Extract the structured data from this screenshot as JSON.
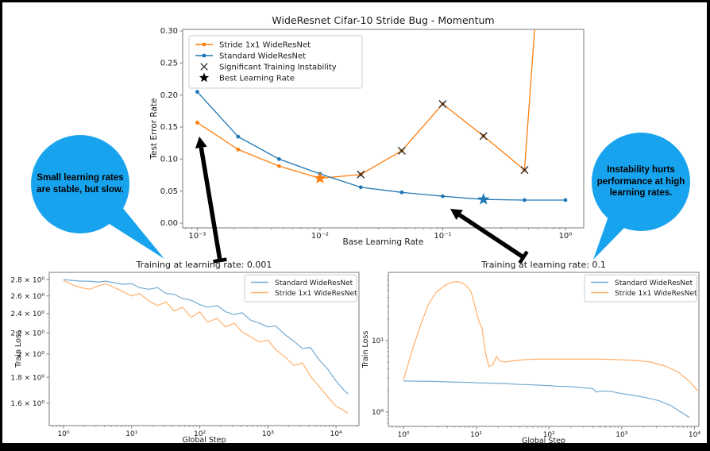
{
  "colors": {
    "orange": "#ff7f0e",
    "blue": "#1f77b4",
    "instability_marker": "#2b2b2b",
    "legend_star": "#000000",
    "bubble_blue": "#17a3ee",
    "arrow_black": "#000000",
    "spine_gray": "#7a7a7a",
    "text_dark": "#1a1a1a"
  },
  "annotations": {
    "left_bubble": {
      "text": "Small learning rates\nare stable, but slow."
    },
    "right_bubble": {
      "text": "Instability hurts\nperformance at high\nlearning rates."
    }
  },
  "chart_data": [
    {
      "id": "top",
      "type": "line",
      "title": "WideResnet Cifar-10 Stride Bug - Momentum",
      "xlabel": "Base Learning Rate",
      "ylabel": "Test Error Rate",
      "xscale": "log",
      "yscale": "linear",
      "xlim": [
        0.00076,
        1.41
      ],
      "ylim": [
        -0.0074,
        0.3025
      ],
      "x_ticks": {
        "values": [
          0.001,
          0.01,
          0.1,
          1
        ],
        "labels": [
          "10⁻³",
          "10⁻²",
          "10⁻¹",
          "10⁰"
        ]
      },
      "y_ticks": {
        "values": [
          0.0,
          0.05,
          0.1,
          0.15,
          0.2,
          0.25,
          0.3
        ],
        "labels": [
          "0.00",
          "0.05",
          "0.10",
          "0.15",
          "0.20",
          "0.25",
          "0.30"
        ]
      },
      "series": [
        {
          "name": "Stride 1x1 WideResNet",
          "color": "orange",
          "marker": "dot",
          "opacity": 1,
          "x": [
            0.001,
            0.00215,
            0.00464,
            0.01,
            0.0215,
            0.0464,
            0.1,
            0.215,
            0.464,
            1.0
          ],
          "y": [
            0.157,
            0.115,
            0.089,
            0.07,
            0.076,
            0.113,
            0.186,
            0.136,
            0.083,
            0.97
          ]
        },
        {
          "name": "Standard WideResNet",
          "color": "blue",
          "marker": "dot",
          "opacity": 1,
          "x": [
            0.001,
            0.00215,
            0.00464,
            0.01,
            0.0215,
            0.0464,
            0.1,
            0.215,
            0.464,
            1.0
          ],
          "y": [
            0.205,
            0.135,
            0.1,
            0.077,
            0.056,
            0.048,
            0.042,
            0.037,
            0.036,
            0.036
          ]
        }
      ],
      "instability_x_markers": {
        "meaning": "Significant Training Instability",
        "x": [
          0.0215,
          0.0464,
          0.1,
          0.215,
          0.464
        ],
        "y": [
          0.076,
          0.113,
          0.186,
          0.136,
          0.083
        ]
      },
      "best_lr_stars": [
        {
          "series": "Stride 1x1 WideResNet",
          "x": 0.01,
          "y": 0.07,
          "color": "orange"
        },
        {
          "series": "Standard WideResNet",
          "x": 0.215,
          "y": 0.037,
          "color": "blue"
        }
      ],
      "legend": {
        "position": "upper left",
        "entries": [
          {
            "label": "Stride 1x1 WideResNet",
            "marker": "line-dot",
            "color": "orange"
          },
          {
            "label": "Standard WideResNet",
            "marker": "line-dot",
            "color": "blue"
          },
          {
            "label": "Significant Training Instability",
            "marker": "x",
            "color": "instability_marker"
          },
          {
            "label": "Best Learning Rate",
            "marker": "star",
            "color": "legend_star"
          }
        ]
      }
    },
    {
      "id": "bottom_left",
      "type": "line",
      "title": "Training at learning rate: 0.001",
      "xlabel": "Global Step",
      "ylabel": "Train Loss",
      "xscale": "log",
      "yscale": "log",
      "xlim": [
        0.617,
        21700
      ],
      "ylim": [
        1.447,
        2.893
      ],
      "x_ticks": {
        "values": [
          1,
          10,
          100,
          1000,
          10000
        ],
        "labels": [
          "10⁰",
          "10¹",
          "10²",
          "10³",
          "10⁴"
        ]
      },
      "y_ticks": {
        "values": [
          1.6,
          1.8,
          2.0,
          2.2,
          2.4,
          2.6,
          2.8
        ],
        "labels": [
          "1.6 × 10⁰",
          "1.8 × 10⁰",
          "2 × 10⁰",
          "2.2 × 10⁰",
          "2.4 × 10⁰",
          "2.6 × 10⁰",
          "2.8 × 10⁰"
        ]
      },
      "series": [
        {
          "name": "Standard WideResNet",
          "color": "blue",
          "marker": "none",
          "opacity": 0.62,
          "x": [
            1,
            1.3,
            1.8,
            2.4,
            3.2,
            4.2,
            5.6,
            7.5,
            10,
            13,
            18,
            24,
            32,
            42,
            56,
            75,
            100,
            130,
            180,
            240,
            320,
            420,
            560,
            750,
            1000,
            1300,
            1800,
            2400,
            3200,
            4200,
            5600,
            7500,
            10000,
            13000,
            15000
          ],
          "y": [
            2.8,
            2.79,
            2.78,
            2.78,
            2.77,
            2.78,
            2.76,
            2.74,
            2.75,
            2.7,
            2.68,
            2.7,
            2.63,
            2.62,
            2.57,
            2.55,
            2.5,
            2.47,
            2.49,
            2.42,
            2.39,
            2.41,
            2.33,
            2.3,
            2.26,
            2.27,
            2.18,
            2.12,
            2.05,
            2.06,
            1.95,
            1.87,
            1.77,
            1.7,
            1.67
          ]
        },
        {
          "name": "Stride 1x1 WideResNet",
          "color": "orange",
          "marker": "none",
          "opacity": 0.62,
          "x": [
            1,
            1.3,
            1.8,
            2.4,
            3.2,
            4.2,
            5.6,
            7.5,
            10,
            13,
            18,
            24,
            32,
            42,
            56,
            75,
            100,
            130,
            180,
            240,
            320,
            420,
            560,
            750,
            1000,
            1300,
            1800,
            2400,
            3200,
            4200,
            5600,
            7500,
            10000,
            13000,
            15000
          ],
          "y": [
            2.79,
            2.74,
            2.7,
            2.68,
            2.72,
            2.75,
            2.7,
            2.65,
            2.6,
            2.63,
            2.54,
            2.49,
            2.53,
            2.43,
            2.47,
            2.36,
            2.42,
            2.31,
            2.35,
            2.26,
            2.3,
            2.21,
            2.16,
            2.11,
            2.13,
            2.04,
            1.97,
            1.9,
            1.92,
            1.81,
            1.73,
            1.65,
            1.58,
            1.55,
            1.53
          ]
        }
      ],
      "legend": {
        "position": "upper right",
        "entries": [
          {
            "label": "Standard WideResNet",
            "marker": "line",
            "color": "blue"
          },
          {
            "label": "Stride 1x1 WideResNet",
            "marker": "line",
            "color": "orange"
          }
        ]
      }
    },
    {
      "id": "bottom_right",
      "type": "line",
      "title": "Training at learning rate: 0.1",
      "xlabel": "Global Step",
      "ylabel": "Train Loss",
      "xscale": "log",
      "yscale": "log",
      "xlim": [
        0.62,
        11500
      ],
      "ylim": [
        0.63,
        90
      ],
      "x_ticks": {
        "values": [
          1,
          10,
          100,
          1000,
          10000
        ],
        "labels": [
          "10⁰",
          "10¹",
          "10²",
          "10³",
          "10⁴"
        ]
      },
      "y_ticks": {
        "values": [
          1,
          10
        ],
        "labels": [
          "10⁰",
          "10¹"
        ]
      },
      "series": [
        {
          "name": "Standard WideResNet",
          "color": "blue",
          "marker": "none",
          "opacity": 0.62,
          "x": [
            1,
            1.5,
            2.2,
            3.3,
            5,
            7.5,
            11,
            17,
            25,
            38,
            56,
            85,
            130,
            190,
            280,
            400,
            450,
            520,
            700,
            950,
            1400,
            2100,
            3200,
            4800,
            6500,
            8500
          ],
          "y": [
            2.72,
            2.7,
            2.69,
            2.66,
            2.62,
            2.6,
            2.56,
            2.53,
            2.5,
            2.44,
            2.41,
            2.36,
            2.3,
            2.27,
            2.2,
            2.12,
            1.9,
            1.97,
            1.95,
            1.83,
            1.72,
            1.6,
            1.45,
            1.22,
            1.0,
            0.84
          ]
        },
        {
          "name": "Stride 1x1 WideResNet",
          "color": "orange",
          "marker": "none",
          "opacity": 0.62,
          "x": [
            1,
            1.3,
            1.7,
            2.2,
            2.8,
            3.6,
            4.5,
            5.5,
            6.5,
            7.5,
            8.5,
            10,
            11,
            12,
            13.5,
            15,
            17,
            19,
            21,
            25,
            32,
            45,
            70,
            110,
            180,
            300,
            500,
            900,
            1500,
            2500,
            4000,
            6000,
            8500,
            11000
          ],
          "y": [
            2.8,
            7,
            16,
            32,
            47,
            58,
            65,
            67,
            64,
            57,
            48,
            26,
            18,
            15,
            6.5,
            4.3,
            4.6,
            6.0,
            5.2,
            5.0,
            5.2,
            5.4,
            5.5,
            5.5,
            5.5,
            5.5,
            5.5,
            5.4,
            5.3,
            5.0,
            4.4,
            3.6,
            2.7,
            2.0
          ]
        }
      ],
      "legend": {
        "position": "upper right",
        "entries": [
          {
            "label": "Standard WideResNet",
            "marker": "line",
            "color": "blue"
          },
          {
            "label": "Stride 1x1 WideResNet",
            "marker": "line",
            "color": "orange"
          }
        ]
      }
    }
  ]
}
